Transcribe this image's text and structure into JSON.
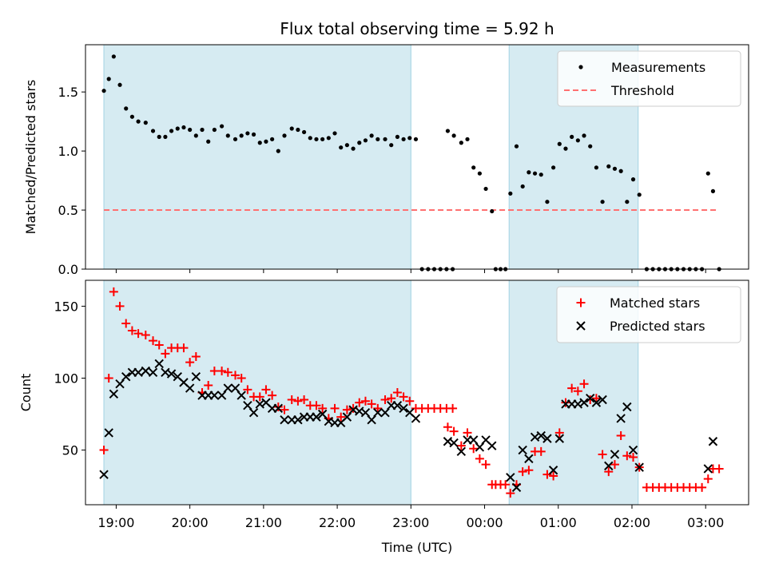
{
  "chart_data": {
    "title": "Flux total observing time = 5.92 h",
    "type": "scatter",
    "colors": {
      "shade": "#add8e6",
      "threshold": "#ff7070",
      "matched": "#ff0000",
      "predicted": "#000000",
      "measurements": "#000000"
    },
    "shaded_intervals": [
      [
        "18:50",
        "23:00"
      ],
      [
        "00:20",
        "02:05"
      ]
    ],
    "xlabel": "Time (UTC)",
    "x_ticks": [
      "19:00",
      "20:00",
      "21:00",
      "22:00",
      "23:00",
      "00:00",
      "01:00",
      "02:00",
      "03:00"
    ],
    "x_range": [
      "18:35",
      "03:35"
    ],
    "top": {
      "ylabel": "Matched/Predicted stars",
      "ylim": [
        0,
        1.9
      ],
      "y_ticks": [
        "0.0",
        "0.5",
        "1.0",
        "1.5"
      ],
      "legend_placement": "upper right",
      "legend": {
        "measurements": "Measurements",
        "threshold": "Threshold"
      },
      "threshold": {
        "value": 0.5,
        "x_range": [
          "18:50",
          "03:10"
        ]
      },
      "measurements": [
        [
          "18:50",
          1.51
        ],
        [
          "18:54",
          1.61
        ],
        [
          "18:58",
          1.8
        ],
        [
          "19:03",
          1.56
        ],
        [
          "19:08",
          1.36
        ],
        [
          "19:13",
          1.29
        ],
        [
          "19:18",
          1.25
        ],
        [
          "19:24",
          1.24
        ],
        [
          "19:30",
          1.17
        ],
        [
          "19:35",
          1.12
        ],
        [
          "19:40",
          1.12
        ],
        [
          "19:45",
          1.17
        ],
        [
          "19:50",
          1.19
        ],
        [
          "19:55",
          1.2
        ],
        [
          "20:00",
          1.18
        ],
        [
          "20:05",
          1.13
        ],
        [
          "20:10",
          1.18
        ],
        [
          "20:15",
          1.08
        ],
        [
          "20:20",
          1.18
        ],
        [
          "20:26",
          1.21
        ],
        [
          "20:31",
          1.13
        ],
        [
          "20:37",
          1.1
        ],
        [
          "20:42",
          1.13
        ],
        [
          "20:47",
          1.15
        ],
        [
          "20:52",
          1.14
        ],
        [
          "20:57",
          1.07
        ],
        [
          "21:02",
          1.08
        ],
        [
          "21:07",
          1.1
        ],
        [
          "21:12",
          1.0
        ],
        [
          "21:17",
          1.13
        ],
        [
          "21:23",
          1.19
        ],
        [
          "21:28",
          1.18
        ],
        [
          "21:33",
          1.16
        ],
        [
          "21:38",
          1.11
        ],
        [
          "21:43",
          1.1
        ],
        [
          "21:48",
          1.1
        ],
        [
          "21:53",
          1.11
        ],
        [
          "21:58",
          1.15
        ],
        [
          "22:03",
          1.03
        ],
        [
          "22:08",
          1.05
        ],
        [
          "22:13",
          1.02
        ],
        [
          "22:18",
          1.07
        ],
        [
          "22:23",
          1.09
        ],
        [
          "22:28",
          1.13
        ],
        [
          "22:33",
          1.1
        ],
        [
          "22:39",
          1.1
        ],
        [
          "22:44",
          1.05
        ],
        [
          "22:49",
          1.12
        ],
        [
          "22:54",
          1.1
        ],
        [
          "22:59",
          1.11
        ],
        [
          "23:04",
          1.1
        ],
        [
          "23:09",
          0.0
        ],
        [
          "23:14",
          0.0
        ],
        [
          "23:19",
          0.0
        ],
        [
          "23:24",
          0.0
        ],
        [
          "23:29",
          0.0
        ],
        [
          "23:34",
          0.0
        ],
        [
          "23:30",
          1.17
        ],
        [
          "23:35",
          1.13
        ],
        [
          "23:41",
          1.07
        ],
        [
          "23:46",
          1.1
        ],
        [
          "23:51",
          0.86
        ],
        [
          "23:56",
          0.81
        ],
        [
          "00:01",
          0.68
        ],
        [
          "00:06",
          0.49
        ],
        [
          "00:09",
          0.0
        ],
        [
          "00:13",
          0.0
        ],
        [
          "00:17",
          0.0
        ],
        [
          "00:21",
          0.64
        ],
        [
          "00:26",
          1.04
        ],
        [
          "00:31",
          0.7
        ],
        [
          "00:36",
          0.82
        ],
        [
          "00:41",
          0.81
        ],
        [
          "00:46",
          0.8
        ],
        [
          "00:51",
          0.57
        ],
        [
          "00:56",
          0.86
        ],
        [
          "01:01",
          1.06
        ],
        [
          "01:06",
          1.02
        ],
        [
          "01:11",
          1.12
        ],
        [
          "01:16",
          1.09
        ],
        [
          "01:21",
          1.13
        ],
        [
          "01:26",
          1.04
        ],
        [
          "01:31",
          0.86
        ],
        [
          "01:36",
          0.57
        ],
        [
          "01:41",
          0.87
        ],
        [
          "01:46",
          0.85
        ],
        [
          "01:51",
          0.83
        ],
        [
          "01:56",
          0.57
        ],
        [
          "02:01",
          0.76
        ],
        [
          "02:06",
          0.63
        ],
        [
          "02:12",
          0.0
        ],
        [
          "02:17",
          0.0
        ],
        [
          "02:22",
          0.0
        ],
        [
          "02:27",
          0.0
        ],
        [
          "02:32",
          0.0
        ],
        [
          "02:37",
          0.0
        ],
        [
          "02:42",
          0.0
        ],
        [
          "02:47",
          0.0
        ],
        [
          "02:52",
          0.0
        ],
        [
          "02:57",
          0.0
        ],
        [
          "03:02",
          0.81
        ],
        [
          "03:06",
          0.66
        ],
        [
          "03:11",
          0.0
        ]
      ]
    },
    "bottom": {
      "ylabel": "Count",
      "ylim": [
        12,
        168
      ],
      "y_ticks": [
        "50",
        "100",
        "150"
      ],
      "legend_placement": "upper right",
      "legend": {
        "matched": "Matched stars",
        "predicted": "Predicted stars"
      },
      "matched": [
        [
          "18:50",
          50
        ],
        [
          "18:54",
          100
        ],
        [
          "18:58",
          160
        ],
        [
          "19:03",
          150
        ],
        [
          "19:08",
          138
        ],
        [
          "19:13",
          133
        ],
        [
          "19:18",
          131
        ],
        [
          "19:24",
          130
        ],
        [
          "19:30",
          126
        ],
        [
          "19:35",
          123
        ],
        [
          "19:40",
          117
        ],
        [
          "19:45",
          121
        ],
        [
          "19:50",
          121
        ],
        [
          "19:55",
          121
        ],
        [
          "20:00",
          111
        ],
        [
          "20:05",
          115
        ],
        [
          "20:10",
          90
        ],
        [
          "20:15",
          95
        ],
        [
          "20:20",
          105
        ],
        [
          "20:26",
          105
        ],
        [
          "20:31",
          104
        ],
        [
          "20:37",
          102
        ],
        [
          "20:42",
          100
        ],
        [
          "20:47",
          92
        ],
        [
          "20:52",
          87
        ],
        [
          "20:57",
          87
        ],
        [
          "21:02",
          92
        ],
        [
          "21:07",
          88
        ],
        [
          "21:12",
          80
        ],
        [
          "21:17",
          78
        ],
        [
          "21:23",
          85
        ],
        [
          "21:28",
          84
        ],
        [
          "21:33",
          85
        ],
        [
          "21:38",
          81
        ],
        [
          "21:43",
          81
        ],
        [
          "21:48",
          79
        ],
        [
          "21:53",
          72
        ],
        [
          "21:58",
          79
        ],
        [
          "22:03",
          73
        ],
        [
          "22:08",
          78
        ],
        [
          "22:13",
          79
        ],
        [
          "22:18",
          83
        ],
        [
          "22:23",
          84
        ],
        [
          "22:28",
          82
        ],
        [
          "22:33",
          79
        ],
        [
          "22:39",
          85
        ],
        [
          "22:44",
          86
        ],
        [
          "22:49",
          90
        ],
        [
          "22:54",
          87
        ],
        [
          "22:59",
          84
        ],
        [
          "23:04",
          79
        ],
        [
          "23:09",
          79
        ],
        [
          "23:14",
          79
        ],
        [
          "23:19",
          79
        ],
        [
          "23:24",
          79
        ],
        [
          "23:29",
          79
        ],
        [
          "23:34",
          79
        ],
        [
          "23:30",
          66
        ],
        [
          "23:35",
          63
        ],
        [
          "23:41",
          53
        ],
        [
          "23:46",
          62
        ],
        [
          "23:51",
          51
        ],
        [
          "23:56",
          44
        ],
        [
          "00:01",
          40
        ],
        [
          "00:06",
          26
        ],
        [
          "00:09",
          26
        ],
        [
          "00:13",
          26
        ],
        [
          "00:17",
          26
        ],
        [
          "00:21",
          20
        ],
        [
          "00:26",
          26
        ],
        [
          "00:31",
          35
        ],
        [
          "00:36",
          36
        ],
        [
          "00:41",
          49
        ],
        [
          "00:46",
          49
        ],
        [
          "00:51",
          33
        ],
        [
          "00:56",
          32
        ],
        [
          "01:01",
          62
        ],
        [
          "01:06",
          83
        ],
        [
          "01:11",
          93
        ],
        [
          "01:16",
          91
        ],
        [
          "01:21",
          96
        ],
        [
          "01:26",
          85
        ],
        [
          "01:31",
          86
        ],
        [
          "01:36",
          47
        ],
        [
          "01:41",
          35
        ],
        [
          "01:46",
          40
        ],
        [
          "01:51",
          60
        ],
        [
          "01:56",
          46
        ],
        [
          "02:01",
          45
        ],
        [
          "02:06",
          38
        ],
        [
          "02:12",
          24
        ],
        [
          "02:17",
          24
        ],
        [
          "02:22",
          24
        ],
        [
          "02:27",
          24
        ],
        [
          "02:32",
          24
        ],
        [
          "02:37",
          24
        ],
        [
          "02:42",
          24
        ],
        [
          "02:47",
          24
        ],
        [
          "02:52",
          24
        ],
        [
          "02:57",
          24
        ],
        [
          "03:02",
          30
        ],
        [
          "03:06",
          37
        ],
        [
          "03:11",
          37
        ]
      ],
      "predicted": [
        [
          "18:50",
          33
        ],
        [
          "18:54",
          62
        ],
        [
          "18:58",
          89
        ],
        [
          "19:03",
          96
        ],
        [
          "19:08",
          101
        ],
        [
          "19:13",
          104
        ],
        [
          "19:18",
          104
        ],
        [
          "19:24",
          105
        ],
        [
          "19:30",
          104
        ],
        [
          "19:35",
          110
        ],
        [
          "19:40",
          104
        ],
        [
          "19:45",
          103
        ],
        [
          "19:50",
          101
        ],
        [
          "19:55",
          97
        ],
        [
          "20:00",
          93
        ],
        [
          "20:05",
          101
        ],
        [
          "20:10",
          88
        ],
        [
          "20:15",
          88
        ],
        [
          "20:20",
          88
        ],
        [
          "20:26",
          88
        ],
        [
          "20:31",
          93
        ],
        [
          "20:37",
          93
        ],
        [
          "20:42",
          88
        ],
        [
          "20:47",
          81
        ],
        [
          "20:52",
          76
        ],
        [
          "20:57",
          82
        ],
        [
          "21:02",
          83
        ],
        [
          "21:07",
          79
        ],
        [
          "21:12",
          79
        ],
        [
          "21:17",
          71
        ],
        [
          "21:23",
          71
        ],
        [
          "21:28",
          71
        ],
        [
          "21:33",
          73
        ],
        [
          "21:38",
          73
        ],
        [
          "21:43",
          73
        ],
        [
          "21:48",
          75
        ],
        [
          "21:53",
          70
        ],
        [
          "21:58",
          69
        ],
        [
          "22:03",
          69
        ],
        [
          "22:08",
          73
        ],
        [
          "22:13",
          78
        ],
        [
          "22:18",
          77
        ],
        [
          "22:23",
          76
        ],
        [
          "22:28",
          71
        ],
        [
          "22:33",
          76
        ],
        [
          "22:39",
          76
        ],
        [
          "22:44",
          81
        ],
        [
          "22:49",
          81
        ],
        [
          "22:54",
          79
        ],
        [
          "22:59",
          76
        ],
        [
          "23:04",
          72
        ],
        [
          "23:30",
          56
        ],
        [
          "23:35",
          55
        ],
        [
          "23:41",
          49
        ],
        [
          "23:46",
          57
        ],
        [
          "23:51",
          57
        ],
        [
          "23:56",
          52
        ],
        [
          "00:01",
          57
        ],
        [
          "00:06",
          53
        ],
        [
          "00:21",
          31
        ],
        [
          "00:26",
          24
        ],
        [
          "00:31",
          50
        ],
        [
          "00:36",
          44
        ],
        [
          "00:41",
          59
        ],
        [
          "00:46",
          60
        ],
        [
          "00:51",
          58
        ],
        [
          "00:56",
          36
        ],
        [
          "01:01",
          58
        ],
        [
          "01:06",
          82
        ],
        [
          "01:11",
          82
        ],
        [
          "01:16",
          82
        ],
        [
          "01:21",
          83
        ],
        [
          "01:26",
          86
        ],
        [
          "01:31",
          83
        ],
        [
          "01:36",
          85
        ],
        [
          "01:41",
          39
        ],
        [
          "01:46",
          47
        ],
        [
          "01:51",
          72
        ],
        [
          "01:56",
          80
        ],
        [
          "02:01",
          50
        ],
        [
          "02:06",
          38
        ],
        [
          "03:02",
          37
        ],
        [
          "03:06",
          56
        ]
      ]
    }
  }
}
